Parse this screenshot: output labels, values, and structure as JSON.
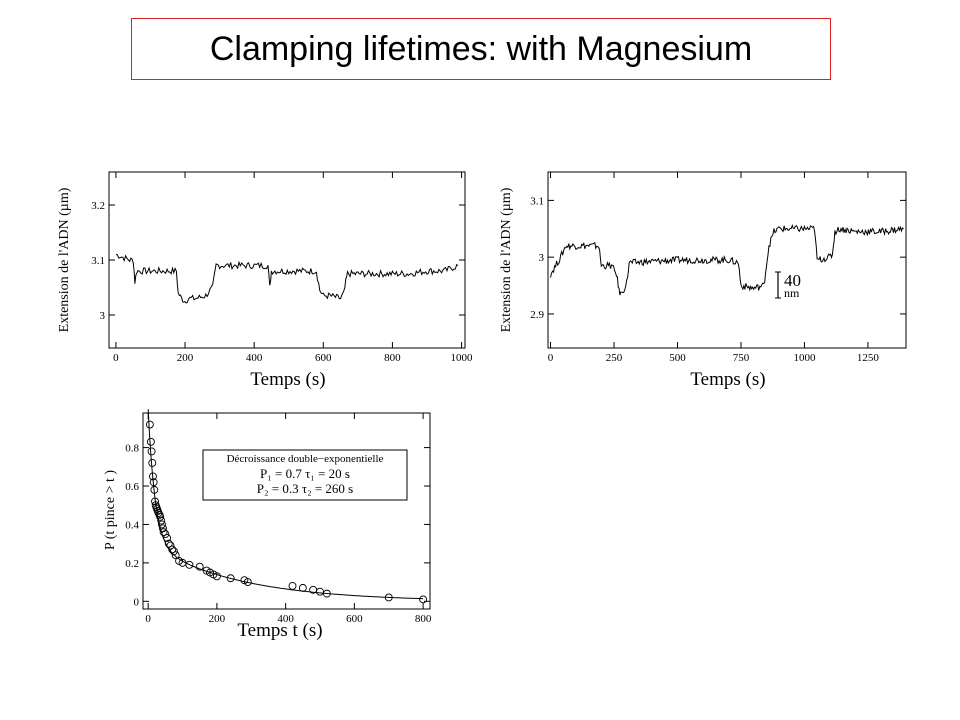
{
  "title": "Clamping lifetimes: with Magnesium",
  "chart_data": [
    {
      "type": "line",
      "xlabel": "Temps (s)",
      "ylabel": "Extension de l'ADN (µm)",
      "xlim": [
        -20,
        1010
      ],
      "ylim": [
        2.94,
        3.26
      ],
      "xticks": [
        "0",
        "200",
        "400",
        "600",
        "800",
        "1000"
      ],
      "yticks": [
        "3",
        "3.1",
        "3.2"
      ],
      "series": [
        {
          "x": [
            0,
            40,
            50,
            55,
            60,
            80,
            100,
            120,
            140,
            160,
            175,
            180,
            190,
            200,
            210,
            230,
            260,
            280,
            290,
            300,
            340,
            380,
            420,
            440,
            445,
            450,
            460,
            480,
            520,
            560,
            580,
            590,
            600,
            620,
            650,
            660,
            665,
            670,
            700,
            750,
            800,
            850,
            900,
            950,
            990
          ],
          "y": [
            3.11,
            3.1,
            3.1,
            3.06,
            3.08,
            3.08,
            3.08,
            3.08,
            3.08,
            3.08,
            3.08,
            3.04,
            3.03,
            3.025,
            3.03,
            3.03,
            3.035,
            3.05,
            3.09,
            3.09,
            3.09,
            3.09,
            3.09,
            3.09,
            3.05,
            3.08,
            3.08,
            3.08,
            3.08,
            3.08,
            3.08,
            3.045,
            3.035,
            3.035,
            3.03,
            3.04,
            3.06,
            3.075,
            3.075,
            3.075,
            3.075,
            3.075,
            3.08,
            3.08,
            3.09
          ]
        }
      ]
    },
    {
      "type": "line",
      "xlabel": "Temps (s)",
      "ylabel": "Extension de l'ADN (µm)",
      "xlim": [
        -10,
        1400
      ],
      "ylim": [
        2.84,
        3.15
      ],
      "xticks": [
        "0",
        "250",
        "500",
        "750",
        "1000",
        "1250"
      ],
      "yticks": [
        "2.9",
        "3",
        "3.1"
      ],
      "annotation": {
        "text": "40",
        "sub": "nm"
      },
      "series": [
        {
          "x": [
            0,
            40,
            60,
            190,
            200,
            240,
            260,
            270,
            280,
            300,
            310,
            500,
            700,
            740,
            750,
            800,
            840,
            850,
            860,
            880,
            900,
            1000,
            1040,
            1050,
            1100,
            1110,
            1120,
            1140,
            1200,
            1300,
            1390
          ],
          "y": [
            2.97,
            3.0,
            3.02,
            3.02,
            2.985,
            2.985,
            2.97,
            2.94,
            2.935,
            2.955,
            2.99,
            2.995,
            2.995,
            2.99,
            2.95,
            2.945,
            2.95,
            2.985,
            3.02,
            3.045,
            3.05,
            3.05,
            3.05,
            2.995,
            3.0,
            3.005,
            3.045,
            3.05,
            3.045,
            3.045,
            3.05
          ]
        }
      ]
    },
    {
      "type": "scatter",
      "xlabel": "Temps t (s)",
      "ylabel": "P (t pince > t )",
      "xlim": [
        -15,
        820
      ],
      "ylim": [
        -0.04,
        0.98
      ],
      "xticks": [
        "0",
        "200",
        "400",
        "600",
        "800"
      ],
      "yticks": [
        "0",
        "0.2",
        "0.4",
        "0.6",
        "0.8"
      ],
      "legend": {
        "title": "Décroissance double−exponentielle",
        "lines": [
          "P₁ = 0.7     τ₁ = 20 s",
          "P₂ = 0.3     τ₂ = 260 s"
        ]
      },
      "fit": {
        "P1": 0.7,
        "tau1": 20,
        "P2": 0.3,
        "tau2": 260
      },
      "series": [
        {
          "x": [
            5,
            8,
            10,
            12,
            14,
            16,
            18,
            20,
            22,
            24,
            26,
            28,
            30,
            33,
            35,
            38,
            40,
            43,
            45,
            50,
            55,
            60,
            65,
            70,
            75,
            80,
            90,
            100,
            120,
            150,
            170,
            180,
            190,
            200,
            240,
            280,
            290,
            420,
            450,
            480,
            500,
            520,
            700,
            800
          ],
          "y": [
            0.92,
            0.83,
            0.78,
            0.72,
            0.65,
            0.62,
            0.58,
            0.52,
            0.5,
            0.49,
            0.48,
            0.47,
            0.46,
            0.45,
            0.44,
            0.42,
            0.4,
            0.38,
            0.36,
            0.35,
            0.33,
            0.3,
            0.29,
            0.27,
            0.26,
            0.24,
            0.21,
            0.2,
            0.19,
            0.18,
            0.16,
            0.15,
            0.14,
            0.13,
            0.12,
            0.11,
            0.1,
            0.08,
            0.07,
            0.06,
            0.05,
            0.04,
            0.02,
            0.01
          ]
        }
      ]
    }
  ]
}
